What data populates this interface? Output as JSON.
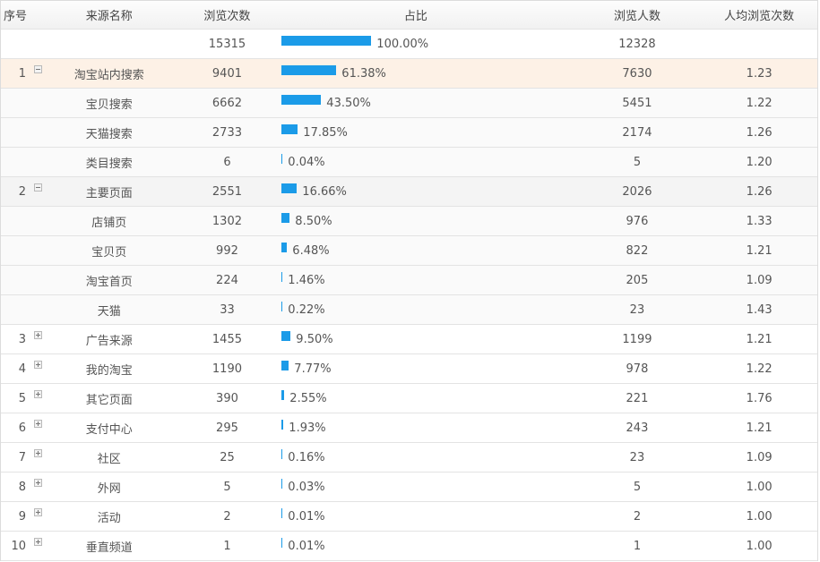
{
  "columns": {
    "index": "序号",
    "source": "来源名称",
    "views": "浏览次数",
    "share": "占比",
    "visitors": "浏览人数",
    "avg": "人均浏览次数"
  },
  "colors": {
    "bar": "#1b9be8",
    "active_row": "#fdf1e6"
  },
  "rows": [
    {
      "kind": "total",
      "index": "",
      "toggle": "",
      "name": "",
      "views": "15315",
      "share_pct": 100.0,
      "share": "100.00%",
      "visitors": "12328",
      "avg": ""
    },
    {
      "kind": "active",
      "index": "1",
      "toggle": "minus",
      "name": "淘宝站内搜索",
      "views": "9401",
      "share_pct": 61.38,
      "share": "61.38%",
      "visitors": "7630",
      "avg": "1.23"
    },
    {
      "kind": "sub",
      "index": "",
      "toggle": "",
      "name": "宝贝搜索",
      "views": "6662",
      "share_pct": 43.5,
      "share": "43.50%",
      "visitors": "5451",
      "avg": "1.22"
    },
    {
      "kind": "sub",
      "index": "",
      "toggle": "",
      "name": "天猫搜索",
      "views": "2733",
      "share_pct": 17.85,
      "share": "17.85%",
      "visitors": "2174",
      "avg": "1.26"
    },
    {
      "kind": "sub",
      "index": "",
      "toggle": "",
      "name": "类目搜索",
      "views": "6",
      "share_pct": 0.04,
      "share": "0.04%",
      "visitors": "5",
      "avg": "1.20"
    },
    {
      "kind": "group",
      "index": "2",
      "toggle": "minus",
      "name": "主要页面",
      "views": "2551",
      "share_pct": 16.66,
      "share": "16.66%",
      "visitors": "2026",
      "avg": "1.26"
    },
    {
      "kind": "sub",
      "index": "",
      "toggle": "",
      "name": "店铺页",
      "views": "1302",
      "share_pct": 8.5,
      "share": "8.50%",
      "visitors": "976",
      "avg": "1.33"
    },
    {
      "kind": "sub",
      "index": "",
      "toggle": "",
      "name": "宝贝页",
      "views": "992",
      "share_pct": 6.48,
      "share": "6.48%",
      "visitors": "822",
      "avg": "1.21"
    },
    {
      "kind": "sub",
      "index": "",
      "toggle": "",
      "name": "淘宝首页",
      "views": "224",
      "share_pct": 1.46,
      "share": "1.46%",
      "visitors": "205",
      "avg": "1.09"
    },
    {
      "kind": "sub",
      "index": "",
      "toggle": "",
      "name": "天猫",
      "views": "33",
      "share_pct": 0.22,
      "share": "0.22%",
      "visitors": "23",
      "avg": "1.43"
    },
    {
      "kind": "row",
      "index": "3",
      "toggle": "plus",
      "name": "广告来源",
      "views": "1455",
      "share_pct": 9.5,
      "share": "9.50%",
      "visitors": "1199",
      "avg": "1.21"
    },
    {
      "kind": "row",
      "index": "4",
      "toggle": "plus",
      "name": "我的淘宝",
      "views": "1190",
      "share_pct": 7.77,
      "share": "7.77%",
      "visitors": "978",
      "avg": "1.22"
    },
    {
      "kind": "row",
      "index": "5",
      "toggle": "plus",
      "name": "其它页面",
      "views": "390",
      "share_pct": 2.55,
      "share": "2.55%",
      "visitors": "221",
      "avg": "1.76"
    },
    {
      "kind": "row",
      "index": "6",
      "toggle": "plus",
      "name": "支付中心",
      "views": "295",
      "share_pct": 1.93,
      "share": "1.93%",
      "visitors": "243",
      "avg": "1.21"
    },
    {
      "kind": "row",
      "index": "7",
      "toggle": "plus",
      "name": "社区",
      "views": "25",
      "share_pct": 0.16,
      "share": "0.16%",
      "visitors": "23",
      "avg": "1.09"
    },
    {
      "kind": "row",
      "index": "8",
      "toggle": "plus",
      "name": "外网",
      "views": "5",
      "share_pct": 0.03,
      "share": "0.03%",
      "visitors": "5",
      "avg": "1.00"
    },
    {
      "kind": "row",
      "index": "9",
      "toggle": "plus",
      "name": "活动",
      "views": "2",
      "share_pct": 0.01,
      "share": "0.01%",
      "visitors": "2",
      "avg": "1.00"
    },
    {
      "kind": "row",
      "index": "10",
      "toggle": "plus",
      "name": "垂直频道",
      "views": "1",
      "share_pct": 0.01,
      "share": "0.01%",
      "visitors": "1",
      "avg": "1.00"
    }
  ]
}
